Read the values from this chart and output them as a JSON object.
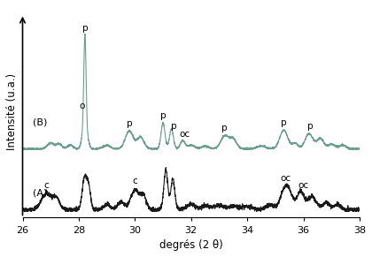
{
  "xlabel": "degrés (2 θ)",
  "ylabel": "Intensité (u.a.)",
  "xlim": [
    26,
    38
  ],
  "line_A_color": "#1a1a1a",
  "line_B_color": "#6b9e8e",
  "label_A": "(A)",
  "label_B": "(B)",
  "background_color": "#ffffff"
}
